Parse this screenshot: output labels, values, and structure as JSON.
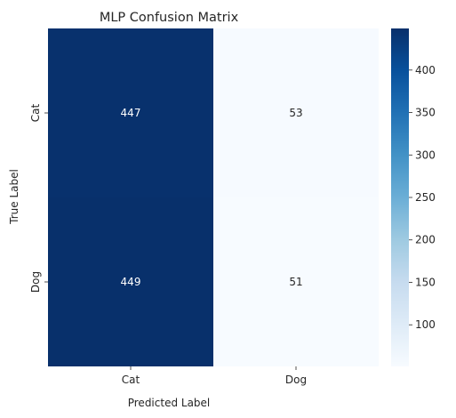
{
  "chart_data": {
    "type": "heatmap",
    "title": "MLP Confusion Matrix",
    "xlabel": "Predicted Label",
    "ylabel": "True Label",
    "x_categories": [
      "Cat",
      "Dog"
    ],
    "y_categories": [
      "Cat",
      "Dog"
    ],
    "values": [
      [
        447,
        53
      ],
      [
        449,
        51
      ]
    ],
    "colormap": "Blues",
    "color_range": [
      51,
      449
    ],
    "colorbar_ticks": [
      100,
      150,
      200,
      250,
      300,
      350,
      400
    ],
    "annotations": true
  }
}
